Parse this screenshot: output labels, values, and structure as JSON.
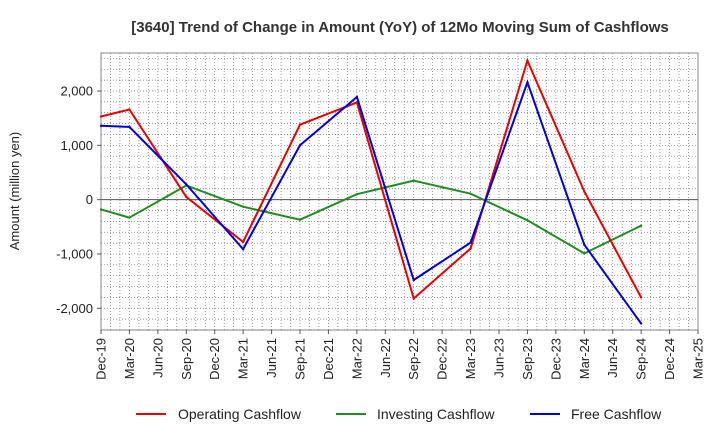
{
  "chart_data": {
    "type": "line",
    "title": "[3640]  Trend of Change in Amount (YoY) of 12Mo Moving Sum of Cashflows",
    "xlabel": "",
    "ylabel": "Amount (million yen)",
    "ylim": [
      -2400,
      2700
    ],
    "yticks": [
      -2000,
      -1000,
      0,
      1000,
      2000
    ],
    "ytick_labels": [
      "-2,000",
      "-1,000",
      "0",
      "1,000",
      "2,000"
    ],
    "categories": [
      "Dec-19",
      "Mar-20",
      "Jun-20",
      "Sep-20",
      "Dec-20",
      "Mar-21",
      "Jun-21",
      "Sep-21",
      "Dec-21",
      "Mar-22",
      "Jun-22",
      "Sep-22",
      "Dec-22",
      "Mar-23",
      "Jun-23",
      "Sep-23",
      "Dec-23",
      "Mar-24",
      "Jun-24",
      "Sep-24",
      "Dec-24",
      "Mar-25"
    ],
    "grid": true,
    "legend_position": "bottom",
    "series": [
      {
        "name": "Operating Cashflow",
        "color": "#e60000",
        "values": [
          1530,
          1660,
          null,
          50,
          null,
          -780,
          null,
          1380,
          null,
          1790,
          null,
          -1820,
          null,
          -900,
          null,
          2560,
          null,
          150,
          null,
          -1800,
          null,
          null
        ]
      },
      {
        "name": "Investing Cashflow",
        "color": "#228b22",
        "values": [
          -180,
          -330,
          null,
          260,
          null,
          -130,
          null,
          -370,
          null,
          100,
          null,
          350,
          null,
          110,
          null,
          -380,
          null,
          -990,
          null,
          -480,
          null,
          null
        ]
      },
      {
        "name": "Free Cashflow",
        "color": "#0000dd",
        "values": [
          1360,
          1340,
          null,
          280,
          null,
          -910,
          null,
          1000,
          null,
          1890,
          null,
          -1480,
          null,
          -790,
          null,
          2160,
          null,
          -830,
          null,
          -2280,
          null,
          null
        ]
      }
    ]
  }
}
